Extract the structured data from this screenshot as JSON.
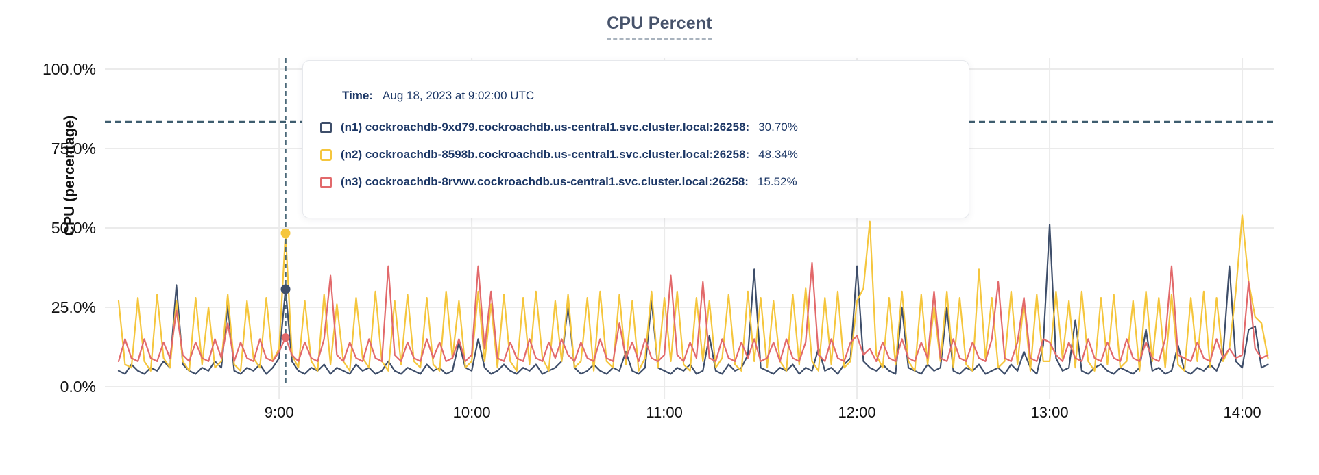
{
  "title_text": "CPU Percent",
  "tooltip": {
    "time_label": "Time:",
    "time_value": "Aug 18, 2023 at 9:02:00 UTC",
    "rows": [
      {
        "id": "n1",
        "label": "(n1) cockroachdb-9xd79.cockroachdb.us-central1.svc.cluster.local:26258:",
        "value": "30.70%",
        "color": "#3E4E6A"
      },
      {
        "id": "n2",
        "label": "(n2) cockroachdb-8598b.cockroachdb.us-central1.svc.cluster.local:26258:",
        "value": "48.34%",
        "color": "#F5C63D"
      },
      {
        "id": "n3",
        "label": "(n3) cockroachdb-8rvwv.cockroachdb.us-central1.svc.cluster.local:26258:",
        "value": "15.52%",
        "color": "#E2696B"
      }
    ]
  },
  "chart_data": {
    "type": "line",
    "title": "CPU Percent",
    "xlabel": "",
    "ylabel": "CPU (percentage)",
    "ylim": [
      0,
      100
    ],
    "grid": true,
    "legend_position": "tooltip-overlay",
    "ytick_values": [
      0,
      25,
      50,
      75,
      100
    ],
    "ytick_labels": [
      "0.0%",
      "25.0%",
      "50.0%",
      "75.0%",
      "100.0%"
    ],
    "xtick_minutes": [
      540,
      600,
      660,
      720,
      780,
      840
    ],
    "xtick_labels": [
      "9:00",
      "10:00",
      "11:00",
      "12:00",
      "13:00",
      "14:00"
    ],
    "x_start_minutes": 490,
    "x_step_minutes": 2,
    "x_end_minutes": 848,
    "threshold_line": {
      "value": 83.4,
      "style": "dashed"
    },
    "crosshair": {
      "time": "9:02",
      "x_minutes": 542,
      "points": [
        {
          "series": "n1",
          "value": 30.7
        },
        {
          "series": "n2",
          "value": 48.34
        },
        {
          "series": "n3",
          "value": 15.52
        }
      ]
    },
    "series": [
      {
        "id": "n1",
        "name": "(n1) cockroachdb-9xd79.cockroachdb.us-central1.svc.cluster.local:26258",
        "color": "#3E4E6A",
        "values": [
          5,
          4,
          7,
          5,
          4,
          6,
          5,
          8,
          6,
          32,
          7,
          5,
          4,
          6,
          5,
          8,
          6,
          26,
          5,
          4,
          6,
          5,
          7,
          4,
          6,
          9,
          30.7,
          8,
          5,
          4,
          6,
          5,
          7,
          4,
          6,
          5,
          4,
          7,
          5,
          6,
          4,
          5,
          8,
          5,
          4,
          6,
          5,
          4,
          7,
          5,
          6,
          4,
          5,
          14,
          6,
          5,
          15,
          6,
          4,
          5,
          7,
          5,
          4,
          6,
          5,
          7,
          4,
          5,
          6,
          8,
          26,
          6,
          4,
          5,
          7,
          5,
          4,
          6,
          5,
          11,
          5,
          4,
          6,
          27,
          6,
          5,
          4,
          6,
          5,
          7,
          4,
          5,
          16,
          5,
          4,
          7,
          5,
          6,
          10,
          37,
          6,
          5,
          4,
          6,
          5,
          7,
          4,
          6,
          5,
          12,
          5,
          6,
          4,
          7,
          9,
          38,
          8,
          6,
          5,
          7,
          5,
          4,
          25,
          6,
          5,
          4,
          7,
          5,
          6,
          25,
          5,
          4,
          6,
          5,
          7,
          4,
          5,
          6,
          4,
          7,
          5,
          11,
          6,
          4,
          13,
          51,
          9,
          5,
          6,
          21,
          5,
          4,
          6,
          7,
          5,
          4,
          6,
          5,
          4,
          6,
          18,
          5,
          6,
          4,
          5,
          13,
          5,
          4,
          6,
          5,
          7,
          5,
          10,
          38,
          8,
          6,
          18,
          19,
          6,
          7
        ]
      },
      {
        "id": "n2",
        "name": "(n2) cockroachdb-8598b.cockroachdb.us-central1.svc.cluster.local:26258",
        "color": "#F5C63D",
        "values": [
          27,
          7,
          6,
          28,
          8,
          5,
          29,
          9,
          6,
          27,
          8,
          5,
          28,
          7,
          25,
          6,
          8,
          29,
          7,
          5,
          27,
          9,
          6,
          28,
          8,
          12,
          48.34,
          10,
          6,
          27,
          8,
          5,
          29,
          7,
          26,
          8,
          5,
          28,
          9,
          6,
          30,
          8,
          5,
          27,
          7,
          29,
          8,
          6,
          28,
          7,
          5,
          30,
          9,
          27,
          6,
          8,
          30,
          8,
          26,
          6,
          29,
          8,
          5,
          28,
          7,
          30,
          9,
          5,
          27,
          8,
          29,
          6,
          8,
          28,
          5,
          30,
          8,
          6,
          29,
          7,
          27,
          5,
          9,
          30,
          6,
          28,
          8,
          30,
          7,
          5,
          28,
          8,
          27,
          6,
          9,
          29,
          7,
          5,
          30,
          8,
          28,
          6,
          27,
          8,
          5,
          29,
          7,
          31,
          8,
          5,
          28,
          7,
          30,
          6,
          8,
          27,
          31,
          52,
          10,
          6,
          28,
          7,
          30,
          8,
          5,
          29,
          7,
          25,
          8,
          30,
          6,
          28,
          7,
          5,
          37,
          9,
          28,
          6,
          8,
          30,
          7,
          27,
          5,
          29,
          8,
          8,
          30,
          9,
          27,
          6,
          30,
          8,
          5,
          28,
          7,
          29,
          6,
          8,
          27,
          5,
          30,
          8,
          28,
          6,
          29,
          7,
          5,
          28,
          8,
          30,
          6,
          28,
          8,
          12,
          30,
          54,
          33,
          22,
          20,
          9
        ]
      },
      {
        "id": "n3",
        "name": "(n3) cockroachdb-8rvwv.cockroachdb.us-central1.svc.cluster.local:26258",
        "color": "#E2696B",
        "values": [
          8,
          15,
          9,
          8,
          15,
          9,
          8,
          14,
          9,
          24,
          10,
          8,
          14,
          9,
          8,
          15,
          9,
          20,
          8,
          14,
          9,
          8,
          15,
          9,
          8,
          11,
          15.52,
          10,
          8,
          14,
          9,
          8,
          15,
          35,
          10,
          8,
          14,
          9,
          8,
          15,
          9,
          8,
          38,
          10,
          8,
          14,
          9,
          8,
          15,
          9,
          14,
          8,
          9,
          15,
          8,
          10,
          38,
          12,
          30,
          9,
          8,
          14,
          9,
          8,
          15,
          9,
          8,
          14,
          9,
          15,
          10,
          8,
          14,
          9,
          8,
          15,
          9,
          8,
          20,
          9,
          14,
          8,
          15,
          9,
          8,
          10,
          35,
          10,
          8,
          14,
          9,
          33,
          9,
          8,
          15,
          9,
          8,
          14,
          9,
          15,
          8,
          9,
          14,
          8,
          15,
          9,
          8,
          14,
          39,
          10,
          8,
          15,
          9,
          8,
          14,
          16,
          10,
          12,
          8,
          14,
          9,
          8,
          15,
          9,
          8,
          14,
          9,
          30,
          9,
          8,
          15,
          9,
          8,
          14,
          9,
          8,
          15,
          33,
          9,
          8,
          14,
          28,
          9,
          8,
          15,
          14,
          10,
          8,
          14,
          9,
          8,
          15,
          9,
          8,
          14,
          9,
          8,
          15,
          9,
          8,
          14,
          9,
          8,
          15,
          38,
          10,
          9,
          8,
          14,
          9,
          8,
          15,
          9,
          12,
          9,
          10,
          33,
          12,
          9,
          10
        ]
      }
    ],
    "colors": {
      "grid": "#ebebeb",
      "crosshair": "#4c6a7a",
      "threshold": "#3e5d6f",
      "tick_text": "#111111",
      "title": "#47536b"
    }
  }
}
